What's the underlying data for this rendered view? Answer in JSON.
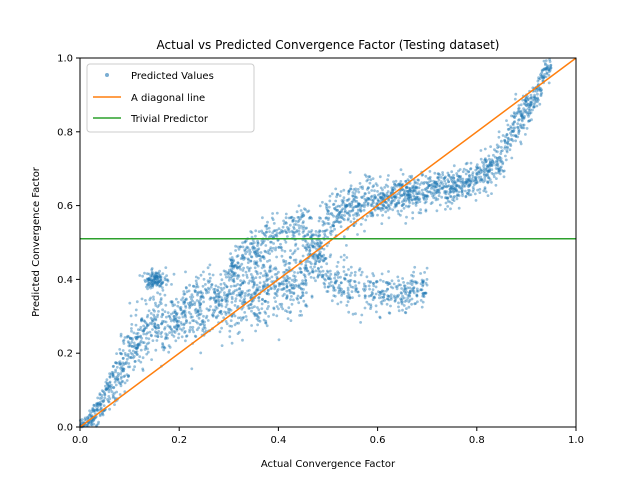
{
  "chart_data": {
    "type": "scatter",
    "title": "Actual vs Predicted Convergence Factor (Testing dataset)",
    "xlabel": "Actual Convergence Factor",
    "ylabel": "Predicted Convergence Factor",
    "xlim": [
      0.0,
      1.0
    ],
    "ylim": [
      0.0,
      1.0
    ],
    "xticks": [
      "0.0",
      "0.2",
      "0.4",
      "0.6",
      "0.8",
      "1.0"
    ],
    "yticks": [
      "0.0",
      "0.2",
      "0.4",
      "0.6",
      "0.8",
      "1.0"
    ],
    "grid": false,
    "legend_position": "top-left",
    "series": [
      {
        "name": "Predicted Values",
        "kind": "scatter",
        "color": "#1f77b4",
        "density_trace": {
          "x": [
            0.0,
            0.03,
            0.06,
            0.09,
            0.12,
            0.15,
            0.2,
            0.25,
            0.3,
            0.35,
            0.4,
            0.45,
            0.5,
            0.55,
            0.6,
            0.65,
            0.7,
            0.75,
            0.8,
            0.85,
            0.88,
            0.9,
            0.92,
            0.94
          ],
          "y_center": [
            0.0,
            0.03,
            0.1,
            0.18,
            0.24,
            0.28,
            0.3,
            0.32,
            0.34,
            0.36,
            0.38,
            0.4,
            0.56,
            0.6,
            0.62,
            0.63,
            0.64,
            0.65,
            0.67,
            0.73,
            0.82,
            0.86,
            0.9,
            0.97
          ],
          "y_spread": [
            0.01,
            0.03,
            0.05,
            0.07,
            0.08,
            0.08,
            0.07,
            0.08,
            0.08,
            0.08,
            0.08,
            0.08,
            0.05,
            0.05,
            0.04,
            0.04,
            0.04,
            0.04,
            0.04,
            0.05,
            0.05,
            0.04,
            0.04,
            0.03
          ]
        },
        "secondary_band": {
          "x": [
            0.3,
            0.35,
            0.4,
            0.45,
            0.5,
            0.55,
            0.6,
            0.65,
            0.7
          ],
          "y_center": [
            0.42,
            0.48,
            0.52,
            0.55,
            0.4,
            0.38,
            0.36,
            0.36,
            0.38
          ],
          "y_spread": [
            0.05,
            0.05,
            0.05,
            0.05,
            0.05,
            0.05,
            0.05,
            0.04,
            0.04
          ]
        },
        "cluster_near_0.15": {
          "x": 0.15,
          "y": 0.4,
          "spread_x": 0.01,
          "spread_y": 0.02
        }
      },
      {
        "name": "A diagonal line",
        "kind": "line",
        "color": "#ff7f0e",
        "x": [
          0.0,
          1.0
        ],
        "y": [
          0.0,
          1.0
        ]
      },
      {
        "name": "Trivial Predictor",
        "kind": "line",
        "color": "#2ca02c",
        "x": [
          0.0,
          1.0
        ],
        "y": [
          0.51,
          0.51
        ]
      }
    ]
  }
}
